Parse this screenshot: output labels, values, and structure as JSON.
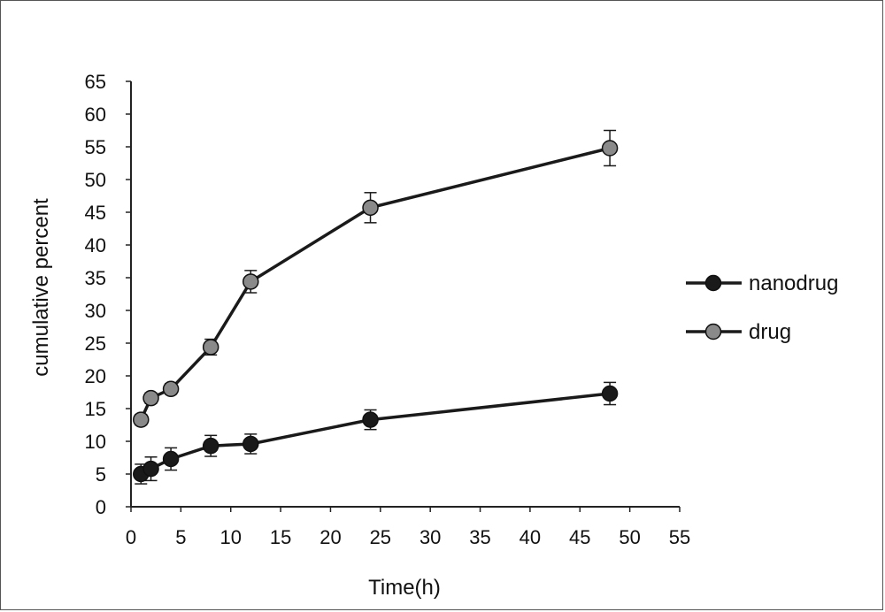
{
  "chart_data": {
    "type": "line",
    "title": "",
    "xlabel": "Time(h)",
    "ylabel": "cumulative percent",
    "xlim": [
      0,
      55
    ],
    "ylim": [
      0,
      65
    ],
    "x_ticks": [
      "0",
      "5",
      "10",
      "15",
      "20",
      "25",
      "30",
      "35",
      "40",
      "45",
      "50",
      "55"
    ],
    "y_ticks": [
      "0",
      "5",
      "10",
      "15",
      "20",
      "25",
      "30",
      "35",
      "40",
      "45",
      "50",
      "55",
      "60",
      "65"
    ],
    "grid": false,
    "legend_position": "right",
    "series": [
      {
        "name": "nanodrug",
        "color": "#1a1a1a",
        "x": [
          1,
          2,
          4,
          8,
          12,
          24,
          48
        ],
        "y": [
          5,
          5.8,
          7.3,
          9.3,
          9.6,
          13.3,
          17.3
        ],
        "error": [
          1.5,
          1.8,
          1.7,
          1.6,
          1.5,
          1.5,
          1.7
        ]
      },
      {
        "name": "drug",
        "color": "#8a8a8a",
        "x": [
          1,
          2,
          4,
          8,
          12,
          24,
          48
        ],
        "y": [
          13.3,
          16.6,
          18.0,
          24.4,
          34.4,
          45.7,
          54.8
        ],
        "error": [
          0.8,
          0.8,
          0.8,
          1.2,
          1.7,
          2.3,
          2.7
        ]
      }
    ]
  }
}
